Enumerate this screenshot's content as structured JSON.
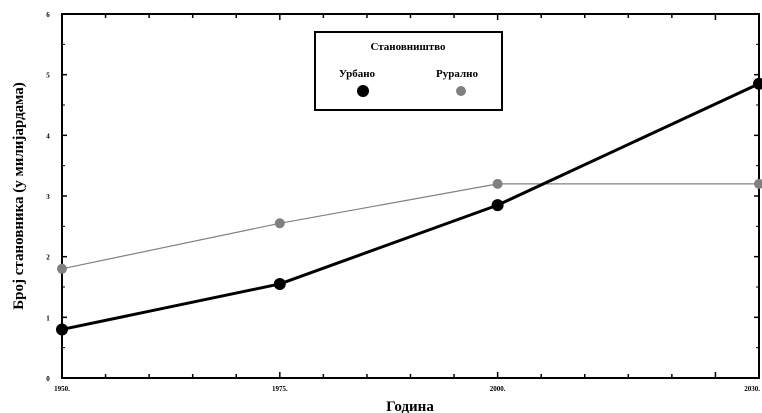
{
  "chart_data": {
    "type": "line",
    "title": "",
    "xlabel": "Година",
    "ylabel": "Број становника (у милијардама)",
    "x": [
      "1950.",
      "1975.",
      "2000.",
      "2030."
    ],
    "xlim": [
      1950,
      2030
    ],
    "ylim": [
      0,
      6
    ],
    "yticks": [
      "0",
      "1",
      "2",
      "3",
      "4",
      "5",
      "6"
    ],
    "grid": false,
    "legend": {
      "title": "Становништво",
      "placement": "top-center"
    },
    "series": [
      {
        "name": "Урбано",
        "color": "#000000",
        "x": [
          1950,
          1975,
          2000,
          2030
        ],
        "values": [
          0.8,
          1.55,
          2.85,
          4.85
        ]
      },
      {
        "name": "Рурално",
        "color": "#808080",
        "x": [
          1950,
          1975,
          2000,
          2030
        ],
        "values": [
          1.8,
          2.55,
          3.2,
          3.2
        ]
      }
    ]
  }
}
